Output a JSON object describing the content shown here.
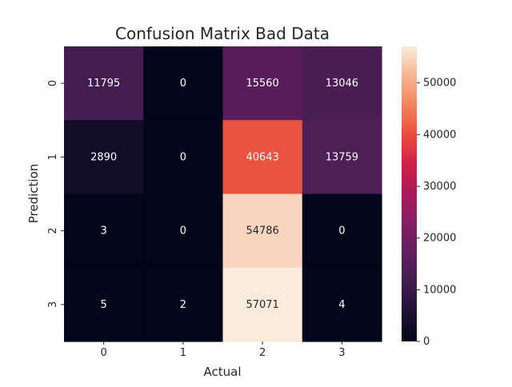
{
  "chart_data": {
    "type": "heatmap",
    "title": "Confusion Matrix Bad Data",
    "xlabel": "Actual",
    "ylabel": "Prediction",
    "x_categories": [
      "0",
      "1",
      "2",
      "3"
    ],
    "y_categories": [
      "0",
      "1",
      "2",
      "3"
    ],
    "values": [
      [
        11795,
        0,
        15560,
        13046
      ],
      [
        2890,
        0,
        40643,
        13759
      ],
      [
        3,
        0,
        54786,
        0
      ],
      [
        5,
        2,
        57071,
        4
      ]
    ],
    "colormap": "rocket",
    "colorbar": {
      "range": [
        0,
        57071
      ],
      "ticks": [
        0,
        10000,
        20000,
        30000,
        40000,
        50000
      ]
    },
    "grid": false
  }
}
